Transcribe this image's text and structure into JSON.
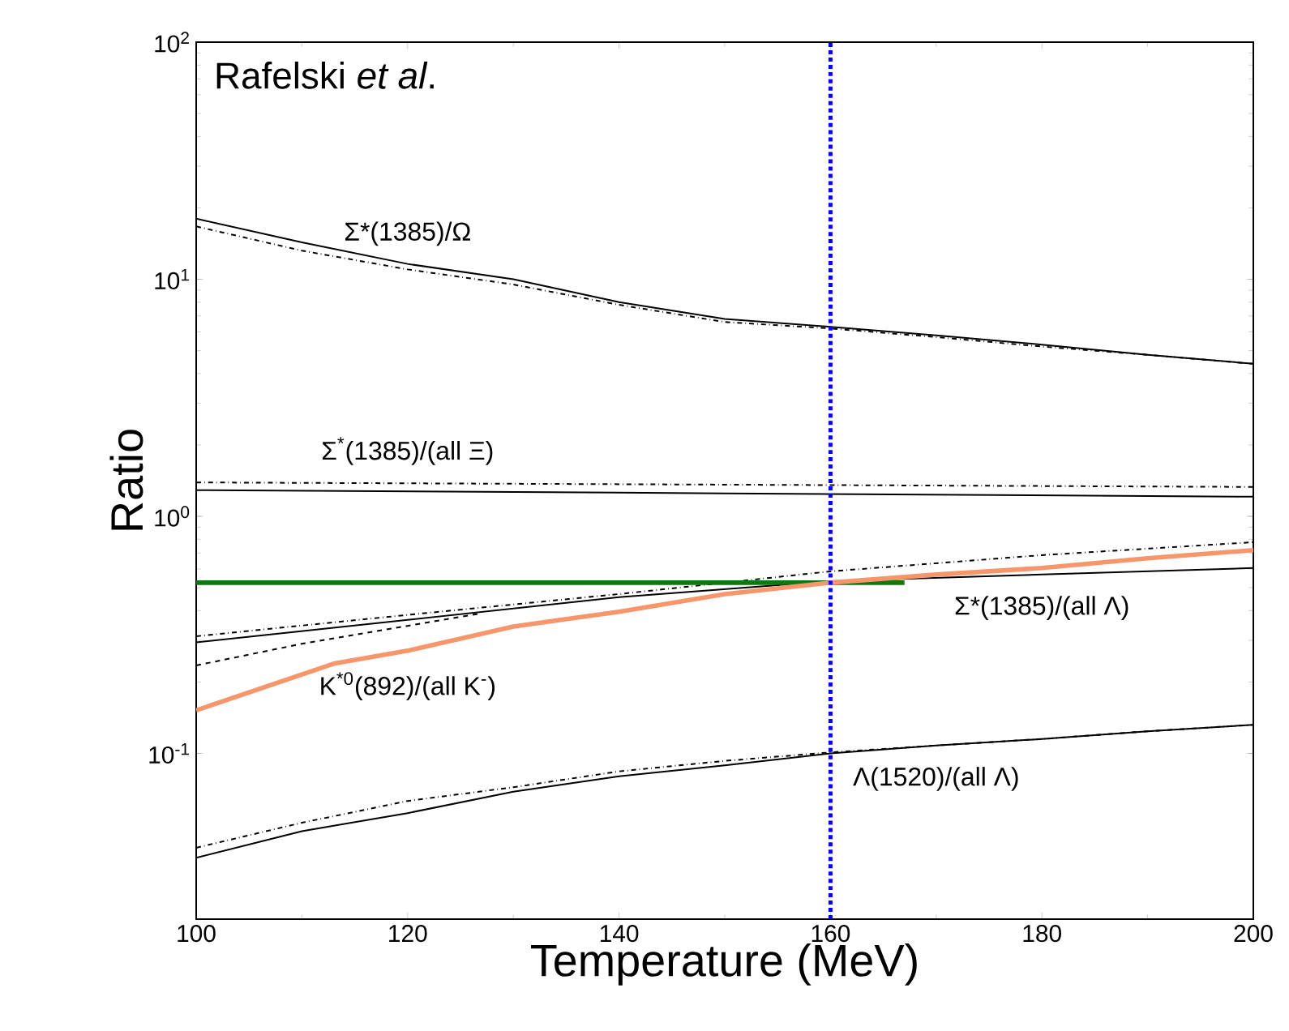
{
  "chart_data": {
    "type": "line",
    "xlabel": "Temperature (MeV)",
    "ylabel": "Ratio",
    "log": "y",
    "xlim": [
      100,
      200
    ],
    "ylim": [
      0.02,
      100
    ],
    "xticks": [
      100,
      120,
      140,
      160,
      180,
      200
    ],
    "yticks": [
      {
        "value": 0.1,
        "label": "10$^{-1}$"
      },
      {
        "value": 1,
        "label": "10$^{0}$"
      },
      {
        "value": 10,
        "label": "10$^{1}$"
      },
      {
        "value": 100,
        "label": "10$^{2}$"
      }
    ],
    "x": [
      100,
      110,
      120,
      130,
      140,
      150,
      160,
      170,
      180,
      190,
      200
    ],
    "series": [
      {
        "color": "#000000",
        "line_style": "solid",
        "values": [
          18.0,
          14.3,
          11.6,
          10.0,
          8.0,
          6.8,
          6.3,
          5.8,
          5.3,
          4.8,
          4.4
        ]
      },
      {
        "color": "#000000",
        "line_style": "dashdot",
        "values": [
          16.7,
          13.2,
          11.0,
          9.5,
          7.8,
          6.6,
          6.2,
          5.7,
          5.2,
          4.8,
          4.4
        ]
      },
      {
        "color": "#000000",
        "line_style": "solid",
        "x": [
          100,
          150,
          200
        ],
        "values": [
          1.29,
          1.25,
          1.21
        ]
      },
      {
        "color": "#000000",
        "line_style": "dashdot",
        "x": [
          100,
          150,
          200
        ],
        "values": [
          1.39,
          1.36,
          1.33
        ]
      },
      {
        "color": "#000000",
        "line_style": "solid",
        "x": [
          100,
          120,
          140,
          160,
          180,
          200
        ],
        "values": [
          0.294,
          0.366,
          0.456,
          0.533,
          0.568,
          0.605
        ]
      },
      {
        "color": "#000000",
        "line_style": "dashdot",
        "x": [
          100,
          120,
          140,
          160,
          180,
          200
        ],
        "values": [
          0.312,
          0.384,
          0.47,
          0.586,
          0.686,
          0.778
        ]
      },
      {
        "color": "#000000",
        "line_style": "dashed",
        "x": [
          100,
          110,
          120,
          127
        ],
        "values": [
          0.235,
          0.29,
          0.345,
          0.39
        ]
      },
      {
        "color": "#000000",
        "line_style": "solid",
        "values": [
          0.0363,
          0.047,
          0.056,
          0.069,
          0.08,
          0.089,
          0.1,
          0.108,
          0.115,
          0.124,
          0.132
        ]
      },
      {
        "color": "#000000",
        "line_style": "dashdot",
        "values": [
          0.04,
          0.051,
          0.063,
          0.072,
          0.084,
          0.093,
          0.101,
          0.108,
          0.115,
          0.124,
          0.132
        ]
      },
      {
        "color": "#117711",
        "line_style": "solid",
        "x": [
          100,
          167
        ],
        "values": [
          0.525,
          0.525
        ]
      },
      {
        "color": "#f7966a",
        "line_style": "solid",
        "x": [
          100,
          113,
          120,
          130,
          140,
          150,
          160,
          170,
          180,
          190,
          200
        ],
        "values": [
          0.152,
          0.239,
          0.271,
          0.343,
          0.396,
          0.47,
          0.525,
          0.568,
          0.605,
          0.665,
          0.72
        ]
      }
    ],
    "ref_lines": [
      {
        "axis": "x",
        "value": 160,
        "color": "#0000ff",
        "line_style": "dotted"
      }
    ],
    "annotations": [
      "Rafelski *et al*.",
      {
        "text": "Σ*(1385)/Ω",
        "x": 120,
        "y": 11.6
      },
      {
        "text": "Σ$^{*}$(1385)/(all Ξ)",
        "x": 120,
        "y": 1.38
      },
      {
        "text": "Σ*(1385)/(all Λ)",
        "x": 180,
        "y": 0.568
      },
      {
        "text": "K$^{*0}$(892)/(all K$^{-}$)",
        "x": 120,
        "y": 0.271
      },
      {
        "text": "Λ(1520)/(all Λ)",
        "x": 170,
        "y": 0.108
      }
    ],
    "grid": false
  }
}
